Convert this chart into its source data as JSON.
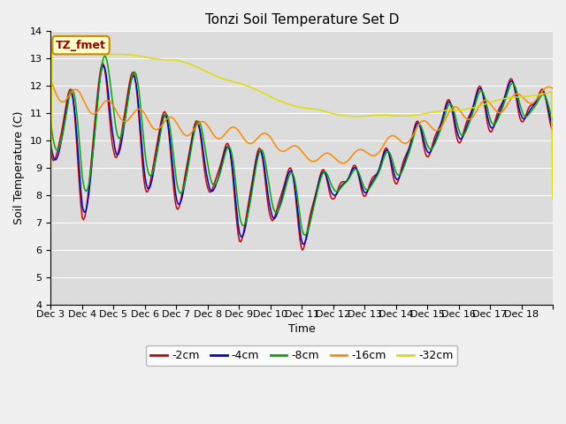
{
  "title": "Tonzi Soil Temperature Set D",
  "xlabel": "Time",
  "ylabel": "Soil Temperature (C)",
  "ylim": [
    4.0,
    14.0
  ],
  "yticks": [
    4.0,
    5.0,
    6.0,
    7.0,
    8.0,
    9.0,
    10.0,
    11.0,
    12.0,
    13.0,
    14.0
  ],
  "xtick_labels": [
    "Dec 3",
    "Dec 4",
    "Dec 5",
    "Dec 6",
    "Dec 7",
    "Dec 8",
    "Dec 9",
    "Dec 10",
    "Dec 11",
    "Dec 12",
    "Dec 13",
    "Dec 14",
    "Dec 15",
    "Dec 16",
    "Dec 17",
    "Dec 18"
  ],
  "colors": {
    "-2cm": "#cc0000",
    "-4cm": "#0000cc",
    "-8cm": "#00aa00",
    "-16cm": "#ff8800",
    "-32cm": "#dddd00"
  },
  "legend_label": "TZ_fmet",
  "legend_box_color": "#ffffcc",
  "legend_box_edge": "#cc8800",
  "plot_bg_color": "#dcdcdc",
  "fig_bg_color": "#f0f0f0",
  "grid_color": "#ffffff",
  "days": 16
}
